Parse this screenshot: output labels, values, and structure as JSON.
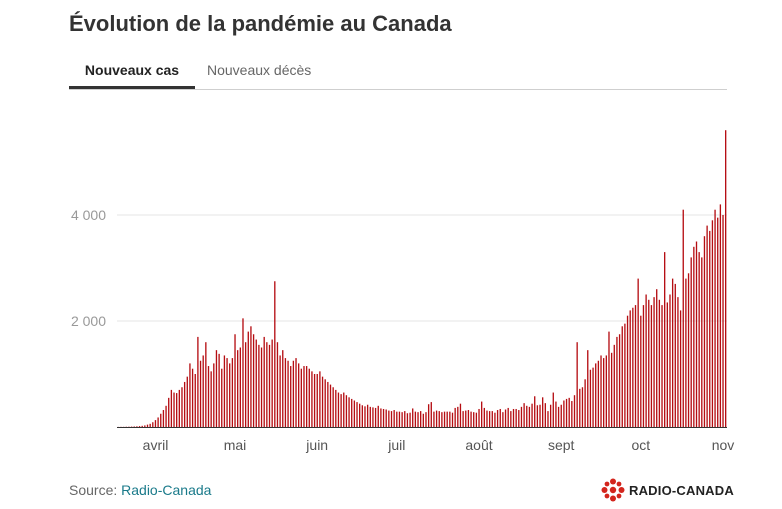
{
  "header": {
    "title": "Évolution de la pandémie au Canada"
  },
  "tabs": [
    {
      "label": "Nouveaux cas",
      "active": true
    },
    {
      "label": "Nouveaux décès",
      "active": false
    }
  ],
  "footer": {
    "source_prefix": "Source: ",
    "source_name": "Radio-Canada",
    "logo_text": "RADIO-CANADA"
  },
  "colors": {
    "bar": "#b50d12",
    "axis_text": "#999999",
    "grid": "#e6e6e6",
    "baseline": "#333333"
  },
  "chart_data": {
    "type": "bar",
    "title": "",
    "xlabel": "",
    "ylabel": "",
    "ylim": [
      0,
      5700
    ],
    "yticks": [
      {
        "value": 2000,
        "label": "2 000"
      },
      {
        "value": 4000,
        "label": "4 000"
      }
    ],
    "grid": true,
    "x_tick_labels": [
      {
        "label": "avril",
        "day": 14
      },
      {
        "label": "mai",
        "day": 44
      },
      {
        "label": "juin",
        "day": 75
      },
      {
        "label": "juil",
        "day": 105
      },
      {
        "label": "août",
        "day": 136
      },
      {
        "label": "sept",
        "day": 167
      },
      {
        "label": "oct",
        "day": 197
      },
      {
        "label": "nov",
        "day": 228
      }
    ],
    "series": [
      {
        "start_date": "2020-03-01",
        "values": [
          2,
          3,
          3,
          5,
          6,
          8,
          10,
          13,
          17,
          22,
          30,
          45,
          60,
          90,
          130,
          180,
          250,
          320,
          400,
          550,
          700,
          650,
          640,
          700,
          750,
          850,
          950,
          1200,
          1100,
          1000,
          1700,
          1250,
          1350,
          1600,
          1150,
          1050,
          1200,
          1450,
          1380,
          1100,
          1350,
          1300,
          1200,
          1300,
          1750,
          1450,
          1500,
          2050,
          1600,
          1800,
          1900,
          1750,
          1650,
          1550,
          1500,
          1700,
          1600,
          1550,
          1650,
          2750,
          1600,
          1350,
          1450,
          1300,
          1250,
          1150,
          1250,
          1300,
          1200,
          1100,
          1150,
          1150,
          1100,
          1050,
          1000,
          1000,
          1050,
          950,
          900,
          850,
          800,
          750,
          700,
          650,
          620,
          650,
          600,
          560,
          530,
          500,
          470,
          440,
          410,
          390,
          420,
          380,
          370,
          360,
          400,
          350,
          340,
          330,
          310,
          300,
          320,
          290,
          290,
          280,
          300,
          260,
          270,
          350,
          290,
          280,
          300,
          250,
          280,
          430,
          470,
          290,
          310,
          300,
          280,
          290,
          290,
          290,
          270,
          360,
          380,
          440,
          300,
          310,
          320,
          290,
          280,
          270,
          340,
          480,
          360,
          310,
          300,
          300,
          270,
          320,
          340,
          280,
          330,
          360,
          300,
          340,
          340,
          320,
          380,
          450,
          400,
          380,
          440,
          580,
          410,
          420,
          560,
          450,
          300,
          420,
          650,
          480,
          380,
          420,
          500,
          530,
          550,
          490,
          600,
          1600,
          720,
          750,
          900,
          1450,
          1080,
          1120,
          1200,
          1250,
          1350,
          1300,
          1350,
          1800,
          1400,
          1550,
          1700,
          1750,
          1900,
          1950,
          2100,
          2200,
          2250,
          2300,
          2800,
          2100,
          2300,
          2500,
          2400,
          2300,
          2450,
          2600,
          2400,
          2300,
          3300,
          2350,
          2500,
          2800,
          2700,
          2450,
          2200,
          4100,
          2800,
          2900,
          3200,
          3400,
          3500,
          3300,
          3200,
          3600,
          3800,
          3700,
          3900,
          4100,
          3950,
          4200,
          4000,
          5600
        ]
      }
    ]
  }
}
